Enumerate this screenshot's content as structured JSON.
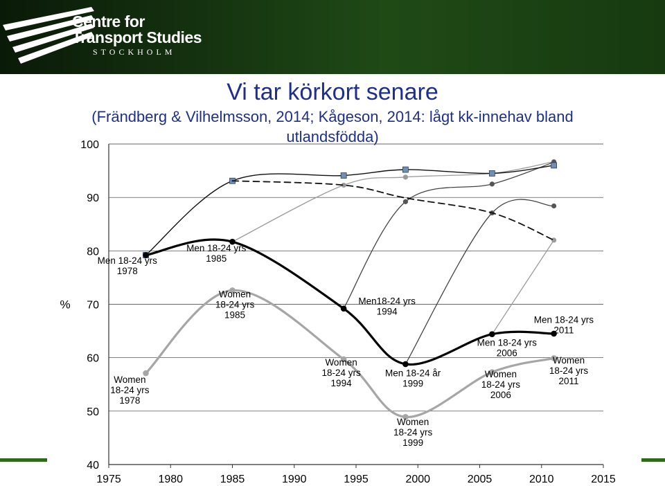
{
  "header": {
    "org_line1": "Centre for",
    "org_line2": "Transport Studies",
    "org_line3": "STOCKHOLM",
    "logo_icon": "cts-stripes-logo"
  },
  "slide": {
    "title": "Vi tar körkort senare",
    "subtitle": "(Frändberg & Vilhelmsson, 2014; Kågeson, 2014: lågt kk-innehav bland utlandsfödda)"
  },
  "colors": {
    "banner": "#173a10",
    "title": "#1d2f8a",
    "accent_bar": "#2e6a1b",
    "men_cohort_line": "#000000",
    "women_cohort_line": "#a6a6a6",
    "marker_square": "#6f8fb4"
  },
  "chart_data": {
    "type": "line",
    "ylabel": "%",
    "xlabel": "",
    "xlim": [
      1975,
      2015
    ],
    "ylim": [
      40,
      100
    ],
    "x_ticks": [
      1975,
      1980,
      1985,
      1990,
      1995,
      2000,
      2005,
      2010,
      2015
    ],
    "y_ticks": [
      40,
      50,
      60,
      70,
      80,
      90,
      100
    ],
    "grid": "horizontal",
    "series": [
      {
        "id": "men-18-24",
        "style": "thick-black",
        "x": [
          1978,
          1985,
          1994,
          1999,
          2006,
          2011
        ],
        "y": [
          79.2,
          81.7,
          69.2,
          58.8,
          64.4,
          64.5
        ]
      },
      {
        "id": "women-18-24",
        "style": "thick-gray",
        "x": [
          1978,
          1985,
          1994,
          1999,
          2006,
          2011
        ],
        "y": [
          57.1,
          72.6,
          59.7,
          48.9,
          57.3,
          59.9
        ]
      },
      {
        "id": "men-cohort-1978",
        "style": "thin-black",
        "x": [
          1978,
          1985,
          1994,
          1999,
          2006,
          2011
        ],
        "y": [
          79.2,
          93.1,
          94.1,
          95.2,
          94.5,
          96.0
        ]
      },
      {
        "id": "men-cohort-1985-dashed",
        "style": "dashed-black",
        "x": [
          1985,
          1994,
          1999,
          2006,
          2011
        ],
        "y": [
          93.1,
          92.3,
          89.9,
          87.1,
          82.0
        ]
      },
      {
        "id": "women-cohort-1985",
        "style": "thin-gray",
        "x": [
          1985,
          1994,
          1999,
          2006,
          2011
        ],
        "y": [
          81.7,
          92.3,
          93.8,
          94.5,
          96.7
        ]
      },
      {
        "id": "men-cohort-1994",
        "style": "thin-dark",
        "x": [
          1994,
          1999,
          2006,
          2011
        ],
        "y": [
          69.2,
          89.2,
          92.5,
          96.6
        ]
      },
      {
        "id": "men-cohort-1999",
        "style": "thin-dark",
        "x": [
          1999,
          2006,
          2011
        ],
        "y": [
          58.8,
          87.1,
          88.4
        ]
      },
      {
        "id": "women-cohort-2006",
        "style": "thin-gray",
        "x": [
          2006,
          2011
        ],
        "y": [
          64.4,
          82.0
        ]
      }
    ],
    "annotations": [
      {
        "lines": [
          "Men 18-24 yrs",
          "1978"
        ],
        "x": 1976.5,
        "y": 77.6
      },
      {
        "lines": [
          "Men 18-24 yrs",
          "1985"
        ],
        "x": 1983.7,
        "y": 79.9
      },
      {
        "lines": [
          "Men18-24 yrs",
          "1994"
        ],
        "x": 1997.5,
        "y": 70.0
      },
      {
        "lines": [
          "Men 18-24 år",
          "1999"
        ],
        "x": 1999.6,
        "y": 56.5
      },
      {
        "lines": [
          "Men 18-24 yrs",
          "2006"
        ],
        "x": 2007.2,
        "y": 62.2
      },
      {
        "lines": [
          "Men 18-24 yrs",
          "2011"
        ],
        "x": 2011.8,
        "y": 66.5
      },
      {
        "lines": [
          "Women",
          "18-24 yrs",
          "1985"
        ],
        "x": 1985.2,
        "y": 71.3
      },
      {
        "lines": [
          "Women",
          "18-24 yrs",
          "1978"
        ],
        "x": 1976.7,
        "y": 55.3
      },
      {
        "lines": [
          "Women",
          "18-24 yrs",
          "1994"
        ],
        "x": 1993.8,
        "y": 58.5
      },
      {
        "lines": [
          "Women",
          "18-24 yrs",
          "1999"
        ],
        "x": 1999.6,
        "y": 47.4
      },
      {
        "lines": [
          "Women",
          "18-24 yrs",
          "2006"
        ],
        "x": 2006.7,
        "y": 56.3
      },
      {
        "lines": [
          "Women",
          "18-24 yrs",
          "2011"
        ],
        "x": 2012.2,
        "y": 58.9
      }
    ]
  }
}
